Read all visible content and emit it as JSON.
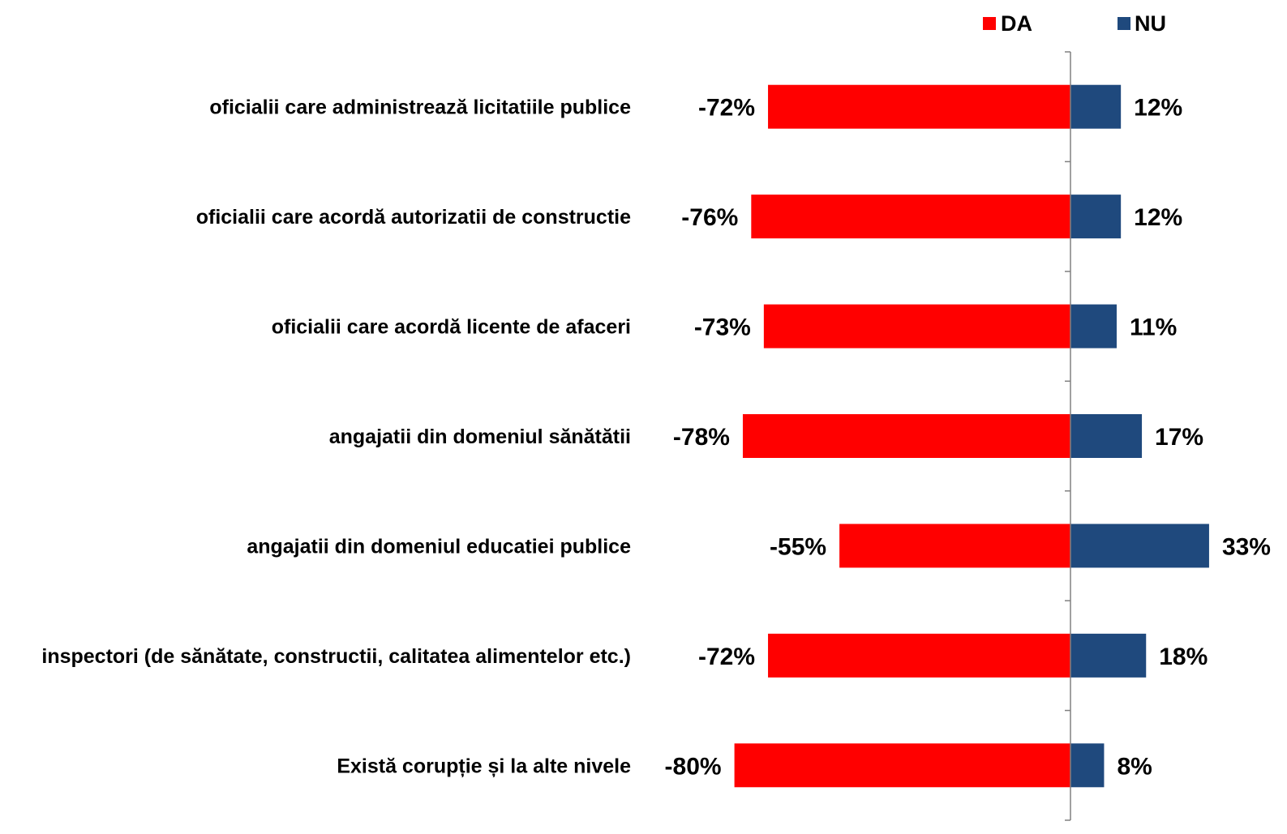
{
  "legend": {
    "da": {
      "label": "DA",
      "color": "#ff0000"
    },
    "nu": {
      "label": "NU",
      "color": "#1f497d"
    }
  },
  "chart_data": {
    "type": "bar",
    "orientation": "horizontal",
    "stacked": "diverging",
    "xlim": [
      -100,
      40
    ],
    "legend_position": "top-right",
    "grid": false,
    "categories": [
      "oficialii care administrează licitatiile publice",
      "oficialii care acordă autorizatii de constructie",
      "oficialii care acordă licente de afaceri",
      "angajatii din domeniul sănătătii",
      "angajatii din domeniul educatiei publice",
      "inspectori (de sănătate, constructii, calitatea alimentelor etc.)",
      "Există corupție și la alte nivele"
    ],
    "series": [
      {
        "name": "DA",
        "color": "#ff0000",
        "values": [
          -72,
          -76,
          -73,
          -78,
          -55,
          -72,
          -80
        ],
        "labels": [
          "-72%",
          "-76%",
          "-73%",
          "-78%",
          "-55%",
          "-72%",
          "-80%"
        ]
      },
      {
        "name": "NU",
        "color": "#1f497d",
        "values": [
          12,
          12,
          11,
          17,
          33,
          18,
          8
        ],
        "labels": [
          "12%",
          "12%",
          "11%",
          "17%",
          "33%",
          "18%",
          "8%"
        ]
      }
    ]
  }
}
